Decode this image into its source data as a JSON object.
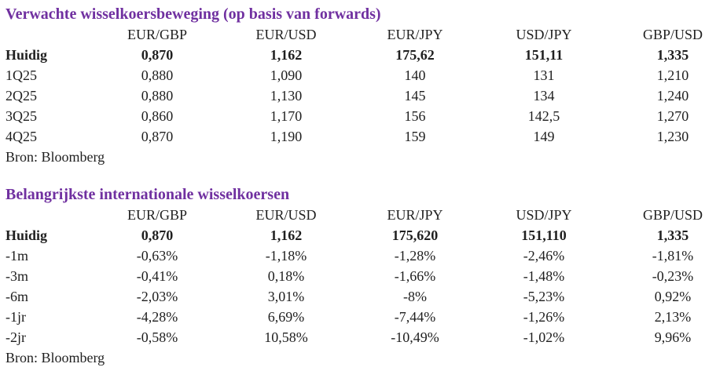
{
  "colors": {
    "accent": "#7030A0",
    "text": "#1f1f1f",
    "background": "#ffffff"
  },
  "tables": [
    {
      "title": "Verwachte wisselkoersbeweging (op basis van forwards)",
      "columns": [
        "EUR/GBP",
        "EUR/USD",
        "EUR/JPY",
        "USD/JPY",
        "GBP/USD"
      ],
      "rows": [
        {
          "label": "Huidig",
          "bold": true,
          "values": [
            "0,870",
            "1,162",
            "175,62",
            "151,11",
            "1,335"
          ]
        },
        {
          "label": "1Q25",
          "bold": false,
          "values": [
            "0,880",
            "1,090",
            "140",
            "131",
            "1,210"
          ]
        },
        {
          "label": "2Q25",
          "bold": false,
          "values": [
            "0,880",
            "1,130",
            "145",
            "134",
            "1,240"
          ]
        },
        {
          "label": "3Q25",
          "bold": false,
          "values": [
            "0,860",
            "1,170",
            "156",
            "142,5",
            "1,270"
          ]
        },
        {
          "label": "4Q25",
          "bold": false,
          "values": [
            "0,870",
            "1,190",
            "159",
            "149",
            "1,230"
          ]
        }
      ],
      "source": "Bron: Bloomberg"
    },
    {
      "title": "Belangrijkste internationale wisselkoersen",
      "columns": [
        "EUR/GBP",
        "EUR/USD",
        "EUR/JPY",
        "USD/JPY",
        "GBP/USD"
      ],
      "rows": [
        {
          "label": "Huidig",
          "bold": true,
          "values": [
            "0,870",
            "1,162",
            "175,620",
            "151,110",
            "1,335"
          ]
        },
        {
          "label": "-1m",
          "bold": false,
          "values": [
            "-0,63%",
            "-1,18%",
            "-1,28%",
            "-2,46%",
            "-1,81%"
          ]
        },
        {
          "label": "-3m",
          "bold": false,
          "values": [
            "-0,41%",
            "0,18%",
            "-1,66%",
            "-1,48%",
            "-0,23%"
          ]
        },
        {
          "label": "-6m",
          "bold": false,
          "values": [
            "-2,03%",
            "3,01%",
            "-8%",
            "-5,23%",
            "0,92%"
          ]
        },
        {
          "label": "-1jr",
          "bold": false,
          "values": [
            "-4,28%",
            "6,69%",
            "-7,44%",
            "-1,26%",
            "2,13%"
          ]
        },
        {
          "label": "-2jr",
          "bold": false,
          "values": [
            "-0,58%",
            "10,58%",
            "-10,49%",
            "-1,02%",
            "9,96%"
          ]
        }
      ],
      "source": "Bron: Bloomberg"
    }
  ]
}
